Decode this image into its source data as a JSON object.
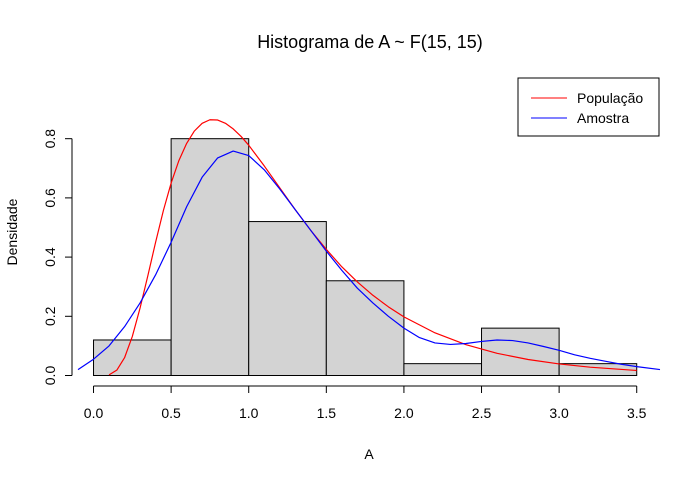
{
  "chart_data": {
    "type": "bar",
    "title": "Histograma de A ~ F(15, 15)",
    "xlabel": "A",
    "ylabel": "Densidade",
    "xlim": [
      -0.1,
      3.65
    ],
    "ylim": [
      0,
      0.88
    ],
    "x_ticks": [
      "0.0",
      "0.5",
      "1.0",
      "1.5",
      "2.0",
      "2.5",
      "3.0",
      "3.5"
    ],
    "y_ticks": [
      "0.0",
      "0.2",
      "0.4",
      "0.6",
      "0.8"
    ],
    "bins": [
      {
        "start": 0.0,
        "end": 0.5,
        "density": 0.12
      },
      {
        "start": 0.5,
        "end": 1.0,
        "density": 0.8
      },
      {
        "start": 1.0,
        "end": 1.5,
        "density": 0.52
      },
      {
        "start": 1.5,
        "end": 2.0,
        "density": 0.32
      },
      {
        "start": 2.0,
        "end": 2.5,
        "density": 0.04
      },
      {
        "start": 2.5,
        "end": 3.0,
        "density": 0.16
      },
      {
        "start": 3.0,
        "end": 3.5,
        "density": 0.04
      }
    ],
    "bar_color": "#d3d3d3",
    "grid": false,
    "legend_position": "top-right",
    "series": [
      {
        "name": "População",
        "type": "line",
        "color": "#ff0000",
        "x": [
          0.1,
          0.15,
          0.2,
          0.25,
          0.3,
          0.35,
          0.4,
          0.45,
          0.5,
          0.55,
          0.6,
          0.65,
          0.7,
          0.75,
          0.8,
          0.85,
          0.9,
          0.95,
          1.0,
          1.1,
          1.2,
          1.3,
          1.4,
          1.5,
          1.6,
          1.7,
          1.8,
          1.9,
          2.0,
          2.2,
          2.4,
          2.6,
          2.8,
          3.0,
          3.2,
          3.5
        ],
        "y": [
          0.002,
          0.018,
          0.06,
          0.132,
          0.228,
          0.337,
          0.45,
          0.557,
          0.65,
          0.726,
          0.784,
          0.826,
          0.852,
          0.864,
          0.863,
          0.852,
          0.833,
          0.808,
          0.778,
          0.708,
          0.634,
          0.56,
          0.49,
          0.426,
          0.367,
          0.316,
          0.271,
          0.232,
          0.198,
          0.144,
          0.104,
          0.075,
          0.054,
          0.039,
          0.028,
          0.017
        ]
      },
      {
        "name": "Amostra",
        "type": "line",
        "color": "#0000ff",
        "x": [
          -0.1,
          0.0,
          0.1,
          0.2,
          0.3,
          0.4,
          0.5,
          0.6,
          0.7,
          0.8,
          0.9,
          1.0,
          1.1,
          1.2,
          1.3,
          1.4,
          1.5,
          1.6,
          1.7,
          1.8,
          1.9,
          2.0,
          2.1,
          2.2,
          2.3,
          2.4,
          2.5,
          2.6,
          2.7,
          2.8,
          2.9,
          3.0,
          3.1,
          3.2,
          3.3,
          3.4,
          3.5,
          3.65
        ],
        "y": [
          0.02,
          0.055,
          0.1,
          0.165,
          0.245,
          0.34,
          0.45,
          0.57,
          0.67,
          0.735,
          0.758,
          0.743,
          0.695,
          0.63,
          0.56,
          0.49,
          0.42,
          0.355,
          0.295,
          0.245,
          0.2,
          0.16,
          0.128,
          0.11,
          0.105,
          0.108,
          0.115,
          0.12,
          0.118,
          0.11,
          0.098,
          0.085,
          0.07,
          0.058,
          0.048,
          0.038,
          0.03,
          0.02
        ]
      }
    ]
  }
}
